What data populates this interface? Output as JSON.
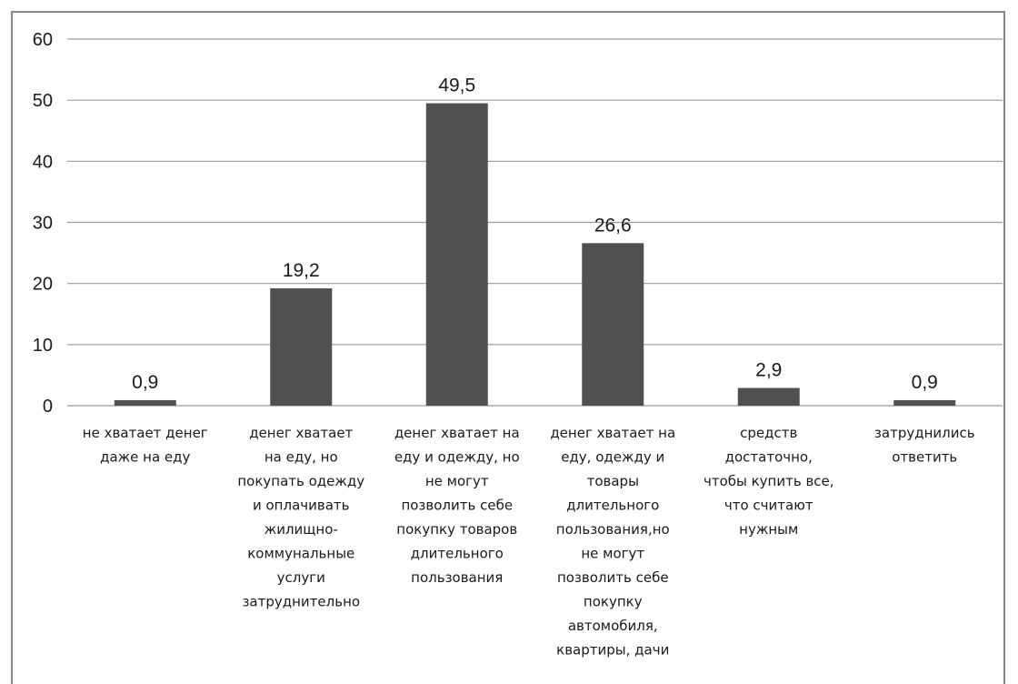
{
  "chart_data": {
    "type": "bar",
    "title": "",
    "xlabel": "",
    "ylabel": "",
    "ylim": [
      0,
      60
    ],
    "yticks": [
      0,
      10,
      20,
      30,
      40,
      50,
      60
    ],
    "grid": true,
    "legend": "none",
    "bar_color": "#505050",
    "categories": [
      "не хватает денег даже на еду",
      "денег хватает на еду, но покупать одежду и оплачивать жилищно-коммунальные услуги затруднительно",
      "денег хватает на еду и одежду, но не могут позволить себе покупку товаров длительного пользования",
      "денег хватает на еду, одежду и товары длительного пользования,но не могут позволить себе покупку автомобиля, квартиры, дачи",
      "средств достаточно, чтобы купить все, что считают нужным",
      "затруднились ответить"
    ],
    "category_lines": [
      [
        "не хватает денег",
        "даже на еду"
      ],
      [
        "денег хватает",
        "на еду, но",
        "покупать одежду",
        "и оплачивать",
        "жилищно-",
        "коммунальные",
        "услуги",
        "затруднительно"
      ],
      [
        "денег хватает на",
        "еду  и одежду, но",
        "не могут",
        "позволить себе",
        "покупку товаров",
        "длительного",
        "пользования"
      ],
      [
        "денег хватает на",
        "еду, одежду и",
        "товары",
        "длительного",
        "пользования,но",
        "не могут",
        "позволить себе",
        "покупку",
        "автомобиля,",
        "квартиры, дачи"
      ],
      [
        "средств",
        "достаточно,",
        "чтобы купить все,",
        "что считают",
        "нужным"
      ],
      [
        "затруднились",
        "ответить"
      ]
    ],
    "values": [
      0.9,
      19.2,
      49.5,
      26.6,
      2.9,
      0.9
    ],
    "value_labels": [
      "0,9",
      "19,2",
      "49,5",
      "26,6",
      "2,9",
      "0,9"
    ]
  }
}
